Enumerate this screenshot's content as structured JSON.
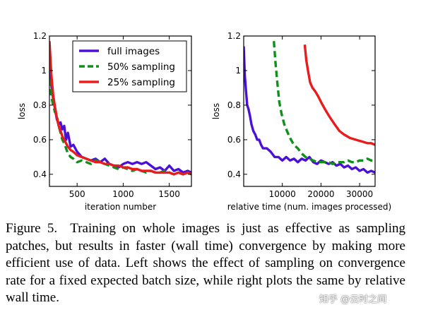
{
  "chart_data": [
    {
      "type": "line",
      "xlabel": "iteration number",
      "ylabel": "loss",
      "xlim": [
        200,
        1740
      ],
      "ylim": [
        0.33,
        1.2
      ],
      "xticks": [
        500,
        1000,
        1500
      ],
      "yticks": [
        0.4,
        0.6,
        0.8,
        1.0,
        1.2
      ],
      "grid": false,
      "legend": "top-right",
      "series": [
        {
          "name": "full images",
          "color": "#4b10d6",
          "dash": "solid",
          "x": [
            200,
            220,
            240,
            260,
            280,
            300,
            320,
            340,
            360,
            380,
            400,
            430,
            460,
            500,
            550,
            600,
            650,
            700,
            750,
            800,
            850,
            900,
            950,
            1000,
            1050,
            1100,
            1150,
            1200,
            1250,
            1300,
            1350,
            1400,
            1450,
            1500,
            1550,
            1600,
            1650,
            1700,
            1740
          ],
          "y": [
            1.0,
            0.92,
            0.84,
            0.78,
            0.72,
            0.69,
            0.7,
            0.66,
            0.68,
            0.6,
            0.64,
            0.56,
            0.57,
            0.53,
            0.5,
            0.49,
            0.48,
            0.49,
            0.47,
            0.49,
            0.46,
            0.45,
            0.44,
            0.46,
            0.47,
            0.46,
            0.47,
            0.46,
            0.47,
            0.45,
            0.43,
            0.44,
            0.42,
            0.45,
            0.42,
            0.43,
            0.41,
            0.42,
            0.41
          ]
        },
        {
          "name": "50% sampling",
          "color": "#118f1b",
          "dash": "dashed",
          "x": [
            200,
            220,
            240,
            260,
            280,
            300,
            320,
            340,
            360,
            380,
            400,
            430,
            460,
            500,
            550,
            600,
            650,
            700,
            750,
            800,
            850,
            900,
            950,
            1000,
            1050,
            1100,
            1150,
            1200,
            1250,
            1300,
            1350,
            1400,
            1450,
            1500,
            1550,
            1600,
            1650,
            1700,
            1740
          ],
          "y": [
            0.95,
            0.85,
            0.8,
            0.76,
            0.74,
            0.68,
            0.64,
            0.6,
            0.58,
            0.55,
            0.52,
            0.5,
            0.49,
            0.47,
            0.48,
            0.47,
            0.46,
            0.48,
            0.47,
            0.46,
            0.45,
            0.44,
            0.43,
            0.44,
            0.43,
            0.42,
            0.43,
            0.42,
            0.41,
            0.42,
            0.41,
            0.41,
            0.42,
            0.41,
            0.4,
            0.41,
            0.4,
            0.41,
            0.4
          ]
        },
        {
          "name": "25% sampling",
          "color": "#ea1b1b",
          "dash": "solid",
          "x": [
            200,
            220,
            240,
            260,
            280,
            300,
            320,
            340,
            360,
            380,
            400,
            430,
            460,
            500,
            550,
            600,
            650,
            700,
            750,
            800,
            850,
            900,
            950,
            1000,
            1050,
            1100,
            1150,
            1200,
            1250,
            1300,
            1350,
            1400,
            1450,
            1500,
            1550,
            1600,
            1650,
            1700,
            1740
          ],
          "y": [
            1.17,
            0.98,
            0.86,
            0.79,
            0.73,
            0.68,
            0.65,
            0.62,
            0.6,
            0.58,
            0.56,
            0.54,
            0.53,
            0.51,
            0.5,
            0.49,
            0.48,
            0.47,
            0.47,
            0.46,
            0.46,
            0.45,
            0.45,
            0.44,
            0.44,
            0.43,
            0.43,
            0.42,
            0.42,
            0.42,
            0.41,
            0.41,
            0.41,
            0.41,
            0.4,
            0.41,
            0.4,
            0.41,
            0.4
          ]
        }
      ]
    },
    {
      "type": "line",
      "xlabel": "relative time (num. images processed)",
      "ylabel": "loss",
      "xlim": [
        0,
        34000
      ],
      "ylim": [
        0.33,
        1.2
      ],
      "xticks": [
        10000,
        20000,
        30000
      ],
      "yticks": [
        0.4,
        0.6,
        0.8,
        1.0,
        1.2
      ],
      "grid": false,
      "legend": "none",
      "series": [
        {
          "name": "full images",
          "color": "#4b10d6",
          "dash": "solid",
          "x": [
            0,
            300,
            600,
            900,
            1200,
            1600,
            2000,
            2500,
            3000,
            3500,
            4000,
            4500,
            5000,
            6000,
            7000,
            8000,
            9000,
            10000,
            11000,
            12000,
            13000,
            14000,
            15000,
            16000,
            17000,
            18000,
            19000,
            20000,
            21000,
            22000,
            23000,
            24000,
            25000,
            26000,
            27000,
            28000,
            29000,
            30000,
            31000,
            32000,
            33000,
            34000
          ],
          "y": [
            1.14,
            0.97,
            0.88,
            0.8,
            0.78,
            0.74,
            0.69,
            0.65,
            0.63,
            0.6,
            0.6,
            0.57,
            0.55,
            0.55,
            0.53,
            0.5,
            0.5,
            0.48,
            0.5,
            0.48,
            0.49,
            0.47,
            0.49,
            0.48,
            0.5,
            0.47,
            0.46,
            0.48,
            0.47,
            0.46,
            0.47,
            0.45,
            0.46,
            0.44,
            0.45,
            0.43,
            0.44,
            0.42,
            0.43,
            0.41,
            0.42,
            0.41
          ]
        },
        {
          "name": "50% sampling",
          "color": "#118f1b",
          "dash": "dashed",
          "x": [
            7800,
            8200,
            8700,
            9200,
            9800,
            10500,
            11200,
            12000,
            13000,
            14000,
            15000,
            16000,
            17000,
            18000,
            19000,
            20000,
            21000,
            22000,
            23000,
            24000,
            25000,
            26000,
            27000,
            28000,
            29000,
            30000,
            31000,
            32000,
            33000,
            34000
          ],
          "y": [
            1.17,
            1.05,
            0.93,
            0.82,
            0.75,
            0.69,
            0.65,
            0.61,
            0.57,
            0.55,
            0.52,
            0.5,
            0.49,
            0.48,
            0.47,
            0.47,
            0.47,
            0.47,
            0.46,
            0.47,
            0.47,
            0.47,
            0.48,
            0.47,
            0.47,
            0.48,
            0.48,
            0.49,
            0.48,
            0.48
          ]
        },
        {
          "name": "25% sampling",
          "color": "#ea1b1b",
          "dash": "solid",
          "x": [
            15800,
            16200,
            16700,
            17200,
            17800,
            18500,
            19300,
            20200,
            21200,
            22300,
            23500,
            24800,
            26000,
            27500,
            29000,
            30500,
            32000,
            33000,
            34000
          ],
          "y": [
            1.15,
            1.06,
            0.99,
            0.93,
            0.9,
            0.88,
            0.85,
            0.81,
            0.77,
            0.73,
            0.69,
            0.65,
            0.63,
            0.61,
            0.6,
            0.59,
            0.58,
            0.58,
            0.57
          ]
        }
      ]
    }
  ],
  "caption": {
    "label": "Figure 5.",
    "text": "Training on whole images is just as effective as sampling patches, but results in faster (wall time) convergence by making more efficient use of data. Left shows the effect of sampling on convergence rate for a fixed expected batch size, while right plots the same by relative wall time."
  },
  "watermark": "知乎 @云时之间"
}
